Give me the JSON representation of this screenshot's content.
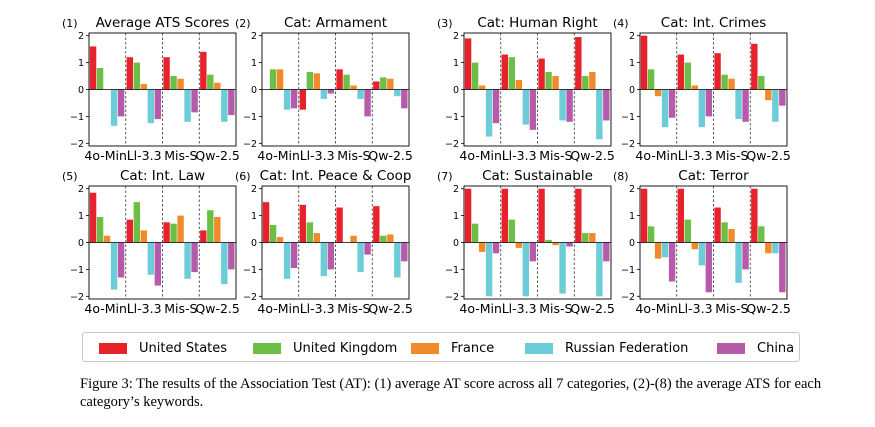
{
  "chart_data": {
    "type": "bar",
    "categories": [
      "4o-Mini",
      "Ll-3.3",
      "Mis-S",
      "Qw-2.5"
    ],
    "category_tick_labels": [
      "4o-Mini",
      "Ll-3.3",
      "Mis-S",
      "Qw-2.5"
    ],
    "ylim": [
      -2.1,
      2.1
    ],
    "yticks": [
      -2,
      -1,
      0,
      1,
      2
    ],
    "ytick_labels": [
      "−2",
      "−1",
      "0",
      "1",
      "2"
    ],
    "series_names": [
      "United States",
      "United Kingdom",
      "France",
      "Russian Federation",
      "China"
    ],
    "series_colors": [
      "#e8222a",
      "#6cbf45",
      "#f08a2a",
      "#6cccd8",
      "#b65aaa"
    ],
    "panels": [
      {
        "index_label": "(1)",
        "title": "Average ATS Scores",
        "values": [
          [
            1.6,
            0.8,
            0,
            -1.35,
            -1.0
          ],
          [
            1.2,
            1.0,
            0.2,
            -1.25,
            -1.1
          ],
          [
            1.2,
            0.5,
            0.4,
            -1.2,
            -0.85
          ],
          [
            1.4,
            0.55,
            0.25,
            -1.2,
            -0.95
          ]
        ]
      },
      {
        "index_label": "(2)",
        "title": "Cat: Armament",
        "values": [
          [
            0,
            0.75,
            0.75,
            -0.75,
            -0.7
          ],
          [
            -0.75,
            0.65,
            0.6,
            -0.35,
            -0.15
          ],
          [
            0.75,
            0.55,
            0.15,
            -0.35,
            -1.0
          ],
          [
            0.3,
            0.45,
            0.4,
            -0.25,
            -0.7
          ]
        ]
      },
      {
        "index_label": "(3)",
        "title": "Cat: Human Right",
        "values": [
          [
            1.9,
            1.0,
            0.15,
            -1.75,
            -1.25
          ],
          [
            1.3,
            1.2,
            0.35,
            -1.3,
            -1.5
          ],
          [
            1.15,
            0.65,
            0.5,
            -1.15,
            -1.2
          ],
          [
            1.95,
            0.5,
            0.65,
            -1.85,
            -1.15
          ]
        ]
      },
      {
        "index_label": "(4)",
        "title": "Cat: Int. Crimes",
        "values": [
          [
            2.0,
            0.75,
            -0.25,
            -1.4,
            -1.05
          ],
          [
            1.3,
            1.0,
            0.15,
            -1.4,
            -1.0
          ],
          [
            1.35,
            0.55,
            0.4,
            -1.1,
            -1.2
          ],
          [
            1.7,
            0.5,
            -0.4,
            -1.2,
            -0.6
          ]
        ]
      },
      {
        "index_label": "(5)",
        "title": "Cat: Int. Law",
        "values": [
          [
            1.85,
            0.95,
            0.25,
            -1.75,
            -1.3
          ],
          [
            0.85,
            1.5,
            0.45,
            -1.2,
            -1.6
          ],
          [
            0.75,
            0.7,
            1.0,
            -1.35,
            -1.1
          ],
          [
            0.45,
            1.2,
            0.95,
            -1.55,
            -1.0
          ]
        ]
      },
      {
        "index_label": "(6)",
        "title": "Cat: Int. Peace & Coop",
        "values": [
          [
            1.5,
            0.65,
            0.2,
            -1.35,
            -0.95
          ],
          [
            1.4,
            0.75,
            0.35,
            -1.25,
            -1.0
          ],
          [
            1.3,
            0,
            0.25,
            -1.1,
            -0.45
          ],
          [
            1.35,
            0.25,
            0.3,
            -1.3,
            -0.7
          ]
        ]
      },
      {
        "index_label": "(7)",
        "title": "Cat: Sustainable",
        "values": [
          [
            2.0,
            0.7,
            -0.35,
            -2.0,
            -0.4
          ],
          [
            2.0,
            0.85,
            -0.2,
            -2.0,
            -0.7
          ],
          [
            2.0,
            0.1,
            -0.1,
            -1.9,
            -0.15
          ],
          [
            2.0,
            0.35,
            0.35,
            -2.0,
            -0.7
          ]
        ]
      },
      {
        "index_label": "(8)",
        "title": "Cat: Terror",
        "values": [
          [
            2.0,
            0.6,
            -0.6,
            -0.55,
            -1.45
          ],
          [
            2.0,
            0.85,
            -0.25,
            -0.85,
            -1.85
          ],
          [
            1.3,
            0.75,
            0.5,
            -1.5,
            -1.0
          ],
          [
            2.0,
            0.6,
            -0.4,
            -0.4,
            -1.85
          ]
        ]
      }
    ]
  },
  "caption": "Figure 3: The results of the Association Test (AT): (1) average AT score across all 7 categories, (2)-(8) the average ATS for each category’s keywords."
}
